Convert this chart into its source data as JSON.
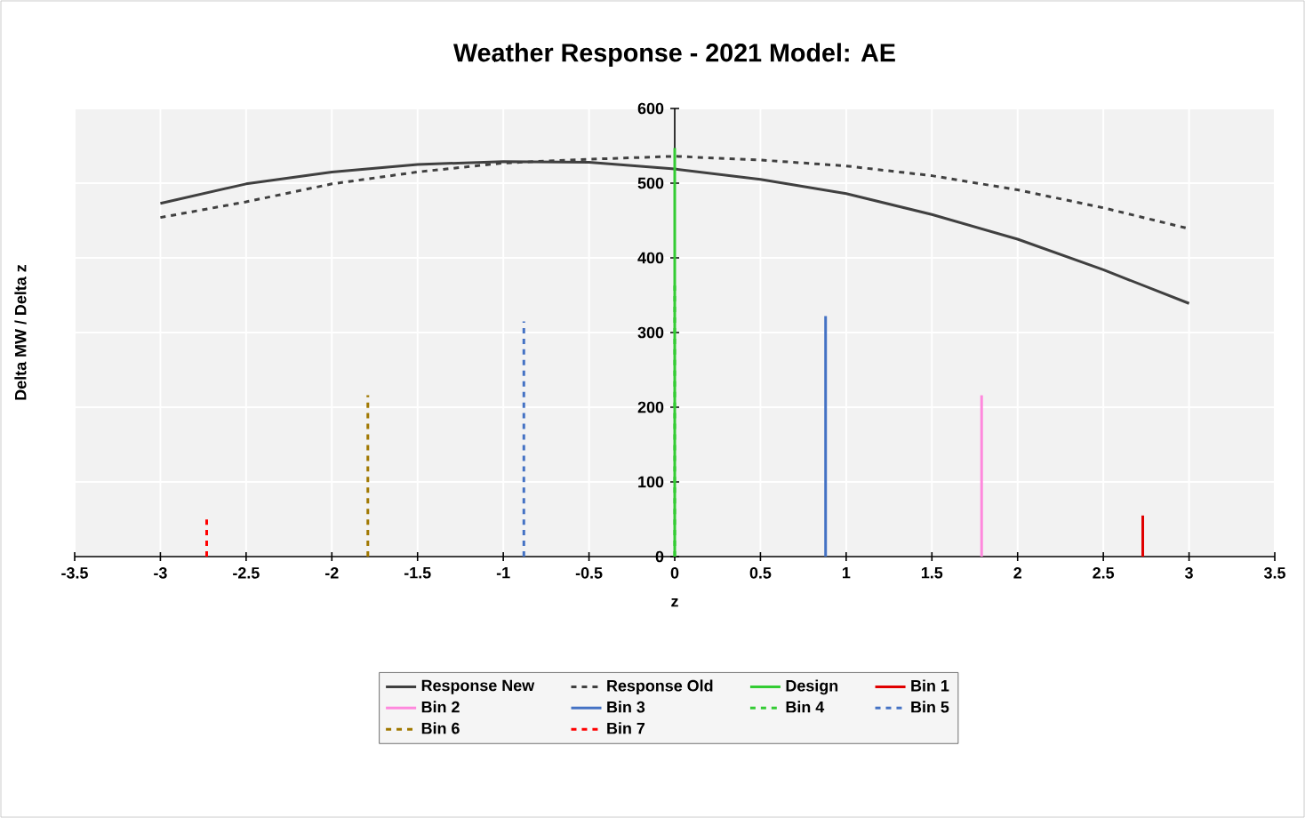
{
  "chart_data": {
    "type": "line",
    "title": "Weather Response -  2021 Model: AE",
    "xlabel": "z",
    "ylabel": "Delta MW / Delta z",
    "xlim": [
      -3.5,
      3.5
    ],
    "ylim": [
      0,
      600
    ],
    "xticks": [
      -3.5,
      -3,
      -2.5,
      -2,
      -1.5,
      -1,
      -0.5,
      0,
      0.5,
      1,
      1.5,
      2,
      2.5,
      3,
      3.5
    ],
    "yticks": [
      0,
      100,
      200,
      300,
      400,
      500,
      600
    ],
    "grid": true,
    "legend": "bottom",
    "marker": "none",
    "series": [
      {
        "name": "Response New",
        "color": "#404040",
        "line_style": "solid",
        "x": [
          -3,
          -2.5,
          -2,
          -1.5,
          -1,
          -0.5,
          0,
          0.5,
          1,
          1.5,
          2,
          2.5,
          3
        ],
        "values": [
          473,
          499,
          515,
          525,
          529,
          528,
          519,
          505,
          486,
          458,
          425,
          384,
          339
        ]
      },
      {
        "name": "Response Old",
        "color": "#404040",
        "line_style": "dashed",
        "x": [
          -3,
          -2.5,
          -2,
          -1.5,
          -1,
          -0.5,
          0,
          0.5,
          1,
          1.5,
          2,
          2.5,
          3
        ],
        "values": [
          454,
          475,
          499,
          515,
          527,
          532,
          536,
          531,
          523,
          510,
          491,
          467,
          439
        ]
      },
      {
        "name": "Design",
        "color": "#33cc33",
        "line_style": "solid",
        "x": [
          0,
          0
        ],
        "values": [
          0,
          547
        ]
      },
      {
        "name": "Bin 1",
        "color": "#e00000",
        "line_style": "solid",
        "x": [
          2.73,
          2.73
        ],
        "values": [
          0,
          55
        ]
      },
      {
        "name": "Bin 2",
        "color": "#ff88dd",
        "line_style": "solid",
        "x": [
          1.79,
          1.79
        ],
        "values": [
          0,
          216
        ]
      },
      {
        "name": "Bin 3",
        "color": "#4472c4",
        "line_style": "solid",
        "x": [
          0.88,
          0.88
        ],
        "values": [
          0,
          322
        ]
      },
      {
        "name": "Bin 4",
        "color": "#33cc33",
        "line_style": "dashed",
        "x": [
          0,
          0
        ],
        "values": [
          0,
          368
        ]
      },
      {
        "name": "Bin 5",
        "color": "#4472c4",
        "line_style": "dashed",
        "x": [
          -0.88,
          -0.88
        ],
        "values": [
          0,
          315
        ]
      },
      {
        "name": "Bin 6",
        "color": "#a07800",
        "line_style": "dashed",
        "x": [
          -1.79,
          -1.79
        ],
        "values": [
          0,
          216
        ]
      },
      {
        "name": "Bin 7",
        "color": "#ff0000",
        "line_style": "dashed",
        "x": [
          -2.73,
          -2.73
        ],
        "values": [
          0,
          55
        ]
      }
    ]
  }
}
